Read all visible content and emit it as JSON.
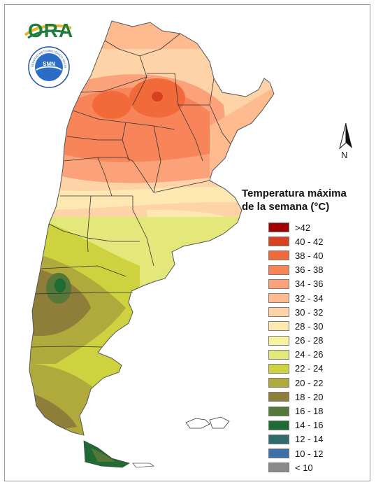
{
  "header": {
    "logo_text": "ORA",
    "seal_text": "SERVICIO METEOROLÓGICO NACIONAL · ARGENTINA",
    "seal_center": "SMN"
  },
  "compass": {
    "label": "N"
  },
  "legend": {
    "title_line1": "Temperatura máxima",
    "title_line2": "de la semana (°C)",
    "items": [
      {
        "label": ">42",
        "color": "#a00000"
      },
      {
        "label": "40 - 42",
        "color": "#d8401e"
      },
      {
        "label": "38 - 40",
        "color": "#f26a3a"
      },
      {
        "label": "36 - 38",
        "color": "#f8855a"
      },
      {
        "label": "34 - 36",
        "color": "#fba27a"
      },
      {
        "label": "32 - 34",
        "color": "#fdbb8f"
      },
      {
        "label": "30 - 32",
        "color": "#fdd3a7"
      },
      {
        "label": "28 - 30",
        "color": "#fde8b2"
      },
      {
        "label": "26 - 28",
        "color": "#f7f3a0"
      },
      {
        "label": "24 - 26",
        "color": "#e4e87a"
      },
      {
        "label": "22 - 24",
        "color": "#cdd23e"
      },
      {
        "label": "20 - 22",
        "color": "#b0a93b"
      },
      {
        "label": "18 - 20",
        "color": "#8f7d3a"
      },
      {
        "label": "16 - 18",
        "color": "#56773a"
      },
      {
        "label": "14 - 16",
        "color": "#1f6b35"
      },
      {
        "label": "12 - 14",
        "color": "#2e6b6b"
      },
      {
        "label": "10 - 12",
        "color": "#3d6fa8"
      },
      {
        "label": "< 10",
        "color": "#8a8a8a"
      }
    ]
  }
}
